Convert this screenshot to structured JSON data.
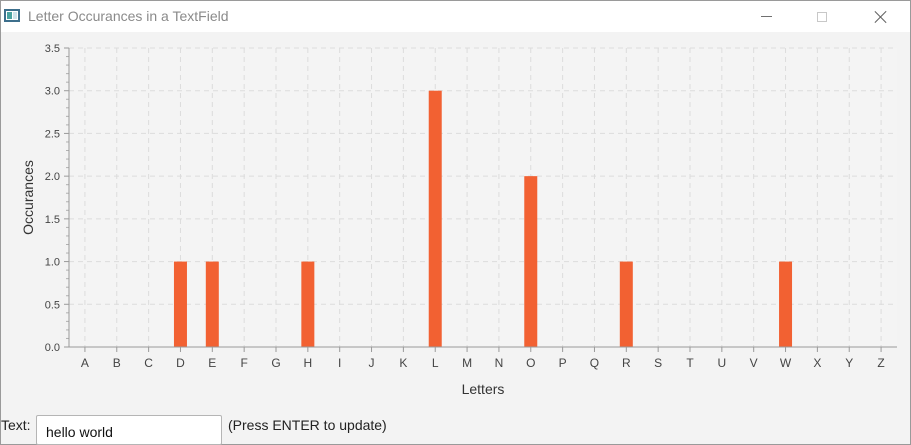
{
  "window": {
    "title": "Letter Occurances in a TextField"
  },
  "chart_data": {
    "type": "bar",
    "categories": [
      "A",
      "B",
      "C",
      "D",
      "E",
      "F",
      "G",
      "H",
      "I",
      "J",
      "K",
      "L",
      "M",
      "N",
      "O",
      "P",
      "Q",
      "R",
      "S",
      "T",
      "U",
      "V",
      "W",
      "X",
      "Y",
      "Z"
    ],
    "values": [
      0,
      0,
      0,
      1,
      1,
      0,
      0,
      1,
      0,
      0,
      0,
      3,
      0,
      0,
      2,
      0,
      0,
      1,
      0,
      0,
      0,
      0,
      1,
      0,
      0,
      0
    ],
    "xlabel": "Letters",
    "ylabel": "Occurances",
    "ylim": [
      0,
      3.5
    ],
    "yticks": [
      "0.0",
      "0.5",
      "1.0",
      "1.5",
      "2.0",
      "2.5",
      "3.0",
      "3.5"
    ],
    "bar_color": "#f26132",
    "grid": true
  },
  "controls": {
    "text_label": "Text:",
    "text_value": "hello world",
    "hint": "(Press ENTER to update)"
  }
}
